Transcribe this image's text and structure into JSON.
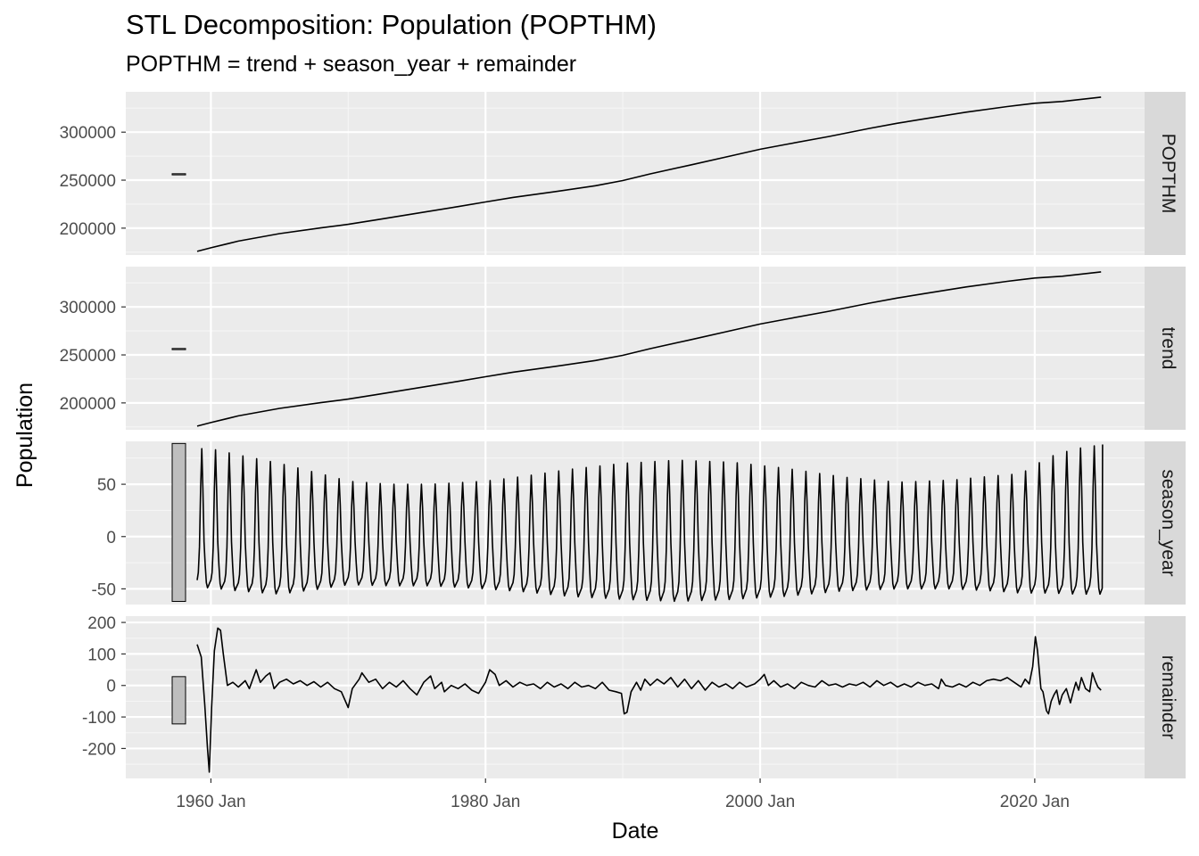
{
  "chart_data": {
    "type": "line",
    "title": "STL Decomposition: Population (POPTHM)",
    "subtitle": "POPTHM = trend + season_year + remainder",
    "xlabel": "Date",
    "ylabel": "Population",
    "grid": true,
    "x_ticks": [
      "1960 Jan",
      "1980 Jan",
      "2000 Jan",
      "2020 Jan"
    ],
    "x_tick_years": [
      1960,
      1980,
      2000,
      2020
    ],
    "xlim": [
      1953.8,
      2028.0
    ],
    "x_range": [
      1959.0,
      2024.83
    ],
    "panels": [
      {
        "name": "POPTHM",
        "ylim": [
          172000,
          342000
        ],
        "y_ticks": [
          "200000",
          "250000",
          "300000"
        ],
        "y_tick_values": [
          200000,
          250000,
          300000
        ],
        "scale_bar_range": [
          255500,
          256700
        ],
        "points": [
          [
            1959.0,
            175800
          ],
          [
            1960.0,
            179500
          ],
          [
            1962.0,
            186500
          ],
          [
            1965.0,
            194300
          ],
          [
            1968.0,
            200200
          ],
          [
            1970.0,
            204000
          ],
          [
            1972.0,
            208500
          ],
          [
            1975.0,
            215500
          ],
          [
            1978.0,
            222400
          ],
          [
            1980.0,
            227300
          ],
          [
            1982.0,
            232000
          ],
          [
            1985.0,
            237900
          ],
          [
            1988.0,
            244200
          ],
          [
            1990.0,
            249600
          ],
          [
            1992.0,
            256500
          ],
          [
            1995.0,
            266000
          ],
          [
            1998.0,
            275700
          ],
          [
            2000.0,
            282200
          ],
          [
            2002.0,
            287600
          ],
          [
            2005.0,
            295500
          ],
          [
            2008.0,
            304000
          ],
          [
            2010.0,
            309300
          ],
          [
            2012.0,
            313900
          ],
          [
            2015.0,
            320800
          ],
          [
            2018.0,
            326700
          ],
          [
            2020.0,
            330100
          ],
          [
            2022.0,
            332000
          ],
          [
            2024.83,
            336500
          ]
        ]
      },
      {
        "name": "trend",
        "ylim": [
          172000,
          342000
        ],
        "y_ticks": [
          "200000",
          "250000",
          "300000"
        ],
        "y_tick_values": [
          200000,
          250000,
          300000
        ],
        "scale_bar_range": [
          255500,
          256700
        ],
        "points": [
          [
            1959.0,
            175800
          ],
          [
            1960.0,
            179500
          ],
          [
            1962.0,
            186500
          ],
          [
            1965.0,
            194300
          ],
          [
            1968.0,
            200200
          ],
          [
            1970.0,
            204000
          ],
          [
            1972.0,
            208500
          ],
          [
            1975.0,
            215500
          ],
          [
            1978.0,
            222400
          ],
          [
            1980.0,
            227300
          ],
          [
            1982.0,
            232000
          ],
          [
            1985.0,
            237900
          ],
          [
            1988.0,
            244200
          ],
          [
            1990.0,
            249600
          ],
          [
            1992.0,
            256500
          ],
          [
            1995.0,
            266000
          ],
          [
            1998.0,
            275700
          ],
          [
            2000.0,
            282200
          ],
          [
            2002.0,
            287600
          ],
          [
            2005.0,
            295500
          ],
          [
            2008.0,
            304000
          ],
          [
            2010.0,
            309300
          ],
          [
            2012.0,
            313900
          ],
          [
            2015.0,
            320800
          ],
          [
            2018.0,
            326700
          ],
          [
            2020.0,
            330100
          ],
          [
            2022.0,
            332000
          ],
          [
            2024.83,
            336500
          ]
        ]
      },
      {
        "name": "season_year",
        "ylim": [
          -65,
          91
        ],
        "y_ticks": [
          "-50",
          "0",
          "50"
        ],
        "y_tick_values": [
          -50,
          0,
          50
        ],
        "scale_bar_range": [
          -62,
          89
        ],
        "seasonal": {
          "start_year": 1959,
          "end_year": 2024.92,
          "peak_month": 0.42,
          "amplitude_points": [
            [
              1959,
              84,
              -49
            ],
            [
              1960,
              84,
              -49
            ],
            [
              1962,
              78,
              -52
            ],
            [
              1965,
              70,
              -55
            ],
            [
              1968,
              60,
              -50
            ],
            [
              1970,
              53,
              -46
            ],
            [
              1973,
              50,
              -47
            ],
            [
              1976,
              50,
              -47
            ],
            [
              1980,
              53,
              -50
            ],
            [
              1983,
              58,
              -53
            ],
            [
              1986,
              64,
              -57
            ],
            [
              1990,
              70,
              -60
            ],
            [
              1994,
              73,
              -62
            ],
            [
              1998,
              71,
              -60
            ],
            [
              2002,
              65,
              -57
            ],
            [
              2006,
              57,
              -52
            ],
            [
              2010,
              52,
              -50
            ],
            [
              2014,
              54,
              -50
            ],
            [
              2017,
              58,
              -52
            ],
            [
              2019,
              60,
              -54
            ],
            [
              2021,
              76,
              -54
            ],
            [
              2023,
              84,
              -55
            ],
            [
              2024.92,
              88,
              -55
            ]
          ]
        }
      },
      {
        "name": "remainder",
        "ylim": [
          -295,
          220
        ],
        "y_ticks": [
          "-200",
          "-100",
          "0",
          "100",
          "200"
        ],
        "y_tick_values": [
          -200,
          -100,
          0,
          100,
          200
        ],
        "scale_bar_range": [
          -122,
          28
        ],
        "points": [
          [
            1959.0,
            130
          ],
          [
            1959.3,
            90
          ],
          [
            1959.55,
            -60
          ],
          [
            1959.75,
            -200
          ],
          [
            1959.88,
            -275
          ],
          [
            1960.05,
            -70
          ],
          [
            1960.25,
            110
          ],
          [
            1960.5,
            182
          ],
          [
            1960.7,
            175
          ],
          [
            1960.9,
            100
          ],
          [
            1961.2,
            0
          ],
          [
            1961.6,
            10
          ],
          [
            1962.0,
            -5
          ],
          [
            1962.5,
            15
          ],
          [
            1962.8,
            -10
          ],
          [
            1963.3,
            50
          ],
          [
            1963.6,
            10
          ],
          [
            1964.0,
            30
          ],
          [
            1964.3,
            40
          ],
          [
            1964.6,
            -10
          ],
          [
            1965.0,
            10
          ],
          [
            1965.5,
            20
          ],
          [
            1966.0,
            5
          ],
          [
            1966.5,
            15
          ],
          [
            1967.0,
            0
          ],
          [
            1967.5,
            12
          ],
          [
            1968.0,
            -5
          ],
          [
            1968.5,
            10
          ],
          [
            1969.0,
            -10
          ],
          [
            1969.5,
            -20
          ],
          [
            1970.0,
            -70
          ],
          [
            1970.3,
            -10
          ],
          [
            1970.8,
            20
          ],
          [
            1971.0,
            40
          ],
          [
            1971.5,
            10
          ],
          [
            1972.0,
            20
          ],
          [
            1972.5,
            -10
          ],
          [
            1973.0,
            10
          ],
          [
            1973.5,
            -5
          ],
          [
            1974.0,
            15
          ],
          [
            1974.5,
            -10
          ],
          [
            1975.0,
            -30
          ],
          [
            1975.5,
            10
          ],
          [
            1976.0,
            30
          ],
          [
            1976.3,
            -10
          ],
          [
            1976.8,
            10
          ],
          [
            1977.0,
            -20
          ],
          [
            1977.5,
            0
          ],
          [
            1978.0,
            -10
          ],
          [
            1978.5,
            5
          ],
          [
            1979.0,
            -15
          ],
          [
            1979.5,
            -25
          ],
          [
            1980.0,
            10
          ],
          [
            1980.3,
            50
          ],
          [
            1980.7,
            35
          ],
          [
            1981.0,
            0
          ],
          [
            1981.5,
            15
          ],
          [
            1982.0,
            -5
          ],
          [
            1982.5,
            10
          ],
          [
            1983.0,
            0
          ],
          [
            1983.5,
            5
          ],
          [
            1984.0,
            -10
          ],
          [
            1984.5,
            10
          ],
          [
            1985.0,
            -5
          ],
          [
            1985.5,
            5
          ],
          [
            1986.0,
            -10
          ],
          [
            1986.5,
            10
          ],
          [
            1987.0,
            -5
          ],
          [
            1987.5,
            0
          ],
          [
            1988.0,
            -10
          ],
          [
            1988.5,
            10
          ],
          [
            1989.0,
            -15
          ],
          [
            1989.5,
            -20
          ],
          [
            1989.9,
            -25
          ],
          [
            1990.1,
            -90
          ],
          [
            1990.3,
            -85
          ],
          [
            1990.6,
            -20
          ],
          [
            1991.0,
            10
          ],
          [
            1991.3,
            -15
          ],
          [
            1991.6,
            20
          ],
          [
            1992.0,
            0
          ],
          [
            1992.5,
            20
          ],
          [
            1993.0,
            5
          ],
          [
            1993.5,
            25
          ],
          [
            1994.0,
            -5
          ],
          [
            1994.5,
            20
          ],
          [
            1995.0,
            -10
          ],
          [
            1995.5,
            15
          ],
          [
            1996.0,
            -15
          ],
          [
            1996.5,
            10
          ],
          [
            1997.0,
            -5
          ],
          [
            1997.5,
            5
          ],
          [
            1998.0,
            -10
          ],
          [
            1998.5,
            10
          ],
          [
            1999.0,
            -5
          ],
          [
            1999.6,
            5
          ],
          [
            2000.0,
            20
          ],
          [
            2000.3,
            35
          ],
          [
            2000.6,
            0
          ],
          [
            2001.0,
            15
          ],
          [
            2001.5,
            -5
          ],
          [
            2002.0,
            5
          ],
          [
            2002.5,
            -10
          ],
          [
            2003.0,
            10
          ],
          [
            2003.5,
            0
          ],
          [
            2004.0,
            -5
          ],
          [
            2004.5,
            15
          ],
          [
            2005.0,
            0
          ],
          [
            2005.5,
            5
          ],
          [
            2006.0,
            -5
          ],
          [
            2006.5,
            5
          ],
          [
            2007.0,
            0
          ],
          [
            2007.5,
            10
          ],
          [
            2008.0,
            -5
          ],
          [
            2008.5,
            15
          ],
          [
            2009.0,
            0
          ],
          [
            2009.5,
            10
          ],
          [
            2010.0,
            -5
          ],
          [
            2010.5,
            5
          ],
          [
            2011.0,
            -5
          ],
          [
            2011.5,
            10
          ],
          [
            2012.0,
            0
          ],
          [
            2012.5,
            5
          ],
          [
            2013.0,
            -10
          ],
          [
            2013.2,
            20
          ],
          [
            2013.5,
            0
          ],
          [
            2014.0,
            -5
          ],
          [
            2014.5,
            5
          ],
          [
            2015.0,
            -5
          ],
          [
            2015.5,
            10
          ],
          [
            2016.0,
            0
          ],
          [
            2016.5,
            15
          ],
          [
            2017.0,
            20
          ],
          [
            2017.5,
            15
          ],
          [
            2018.0,
            25
          ],
          [
            2018.5,
            10
          ],
          [
            2019.0,
            -5
          ],
          [
            2019.3,
            20
          ],
          [
            2019.6,
            5
          ],
          [
            2019.85,
            60
          ],
          [
            2020.05,
            155
          ],
          [
            2020.2,
            110
          ],
          [
            2020.45,
            -10
          ],
          [
            2020.6,
            -20
          ],
          [
            2020.85,
            -80
          ],
          [
            2021.0,
            -90
          ],
          [
            2021.2,
            -50
          ],
          [
            2021.4,
            -30
          ],
          [
            2021.6,
            -15
          ],
          [
            2021.8,
            -60
          ],
          [
            2022.0,
            -30
          ],
          [
            2022.3,
            -10
          ],
          [
            2022.6,
            -55
          ],
          [
            2022.8,
            -20
          ],
          [
            2023.0,
            10
          ],
          [
            2023.2,
            -15
          ],
          [
            2023.4,
            25
          ],
          [
            2023.7,
            -10
          ],
          [
            2024.0,
            -20
          ],
          [
            2024.2,
            40
          ],
          [
            2024.4,
            15
          ],
          [
            2024.6,
            -5
          ],
          [
            2024.83,
            -15
          ]
        ]
      }
    ]
  }
}
